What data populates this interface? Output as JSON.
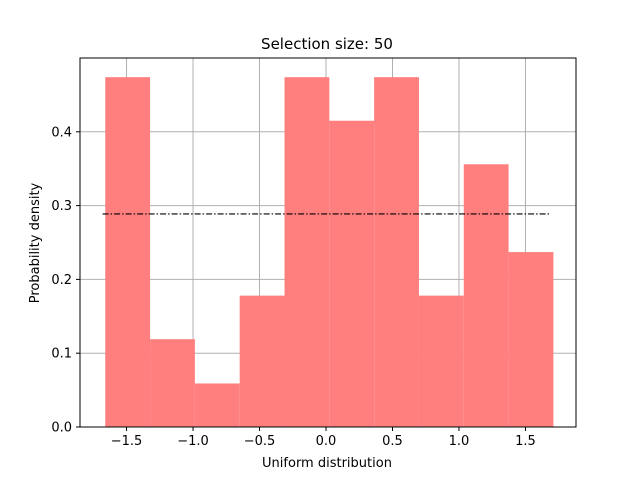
{
  "chart_data": {
    "type": "bar",
    "title": "Selection size: 50",
    "xlabel": "Uniform distribution",
    "ylabel": "Probability density",
    "xlim": [
      -1.85,
      1.88
    ],
    "ylim": [
      0,
      0.5
    ],
    "grid": true,
    "xticks": [
      -1.5,
      -1.0,
      -0.5,
      0.0,
      0.5,
      1.0,
      1.5
    ],
    "xtick_labels": [
      "−1.5",
      "−1.0",
      "−0.5",
      "0.0",
      "0.5",
      "1.0",
      "1.5"
    ],
    "yticks": [
      0.0,
      0.1,
      0.2,
      0.3,
      0.4
    ],
    "ytick_labels": [
      "0.0",
      "0.1",
      "0.2",
      "0.3",
      "0.4"
    ],
    "bins": [
      {
        "x0": -1.66,
        "x1": -1.323,
        "value": 0.474
      },
      {
        "x0": -1.323,
        "x1": -0.986,
        "value": 0.119
      },
      {
        "x0": -0.986,
        "x1": -0.649,
        "value": 0.059
      },
      {
        "x0": -0.649,
        "x1": -0.312,
        "value": 0.178
      },
      {
        "x0": -0.312,
        "x1": 0.025,
        "value": 0.474
      },
      {
        "x0": 0.025,
        "x1": 0.362,
        "value": 0.415
      },
      {
        "x0": 0.362,
        "x1": 0.699,
        "value": 0.474
      },
      {
        "x0": 0.699,
        "x1": 1.036,
        "value": 0.178
      },
      {
        "x0": 1.036,
        "x1": 1.373,
        "value": 0.356
      },
      {
        "x0": 1.373,
        "x1": 1.71,
        "value": 0.237
      }
    ],
    "reference_line": {
      "x0": -1.68,
      "x1": 1.69,
      "y": 0.2887
    },
    "colors": {
      "bars": "#ff7f7f",
      "line": "#000000",
      "grid": "#b0b0b0"
    }
  }
}
